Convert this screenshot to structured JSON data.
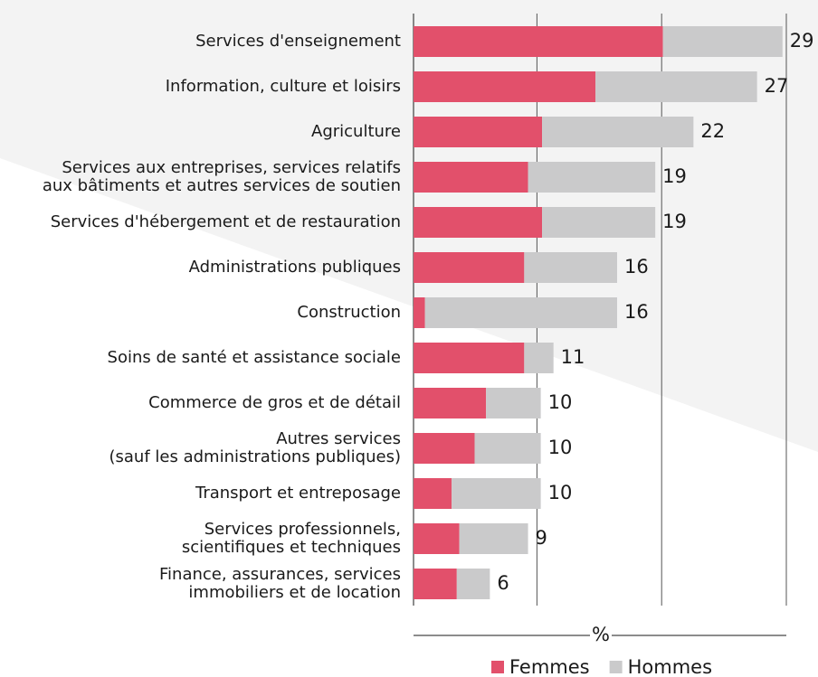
{
  "chart_data": {
    "type": "stacked-barh",
    "categories": [
      [
        "Services d'enseignement"
      ],
      [
        "Information, culture et loisirs"
      ],
      [
        "Agriculture"
      ],
      [
        "Services aux entreprises, services relatifs",
        "aux bâtiments et autres services de soutien"
      ],
      [
        "Services d'hébergement et de restauration"
      ],
      [
        "Administrations publiques"
      ],
      [
        "Construction"
      ],
      [
        "Soins de santé et assistance sociale"
      ],
      [
        "Commerce de gros et de détail"
      ],
      [
        "Autres services",
        "(sauf les administrations publiques)"
      ],
      [
        "Transport et entreposage"
      ],
      [
        "Services professionnels,",
        "scientifiques et techniques"
      ],
      [
        "Finance, assurances, services",
        "immobiliers et de location"
      ]
    ],
    "series": [
      {
        "name": "Femmes",
        "color": "#e2506b",
        "values": [
          19.6,
          14.3,
          10.1,
          9.0,
          10.1,
          8.7,
          0.9,
          8.7,
          5.7,
          4.8,
          3.0,
          3.6,
          3.4
        ]
      },
      {
        "name": "Hommes",
        "color": "#cacacb",
        "values": [
          9.4,
          12.7,
          11.9,
          10.0,
          8.9,
          7.3,
          15.1,
          2.3,
          4.3,
          5.2,
          7.0,
          5.4,
          2.6
        ]
      }
    ],
    "totals": [
      29,
      27,
      22,
      19,
      19,
      16,
      16,
      11,
      10,
      10,
      10,
      9,
      6
    ],
    "xlabel": "%",
    "xlim": [
      0,
      29.3
    ],
    "xticks": [
      0,
      9.7,
      19.5,
      29.3
    ],
    "grid": true
  }
}
